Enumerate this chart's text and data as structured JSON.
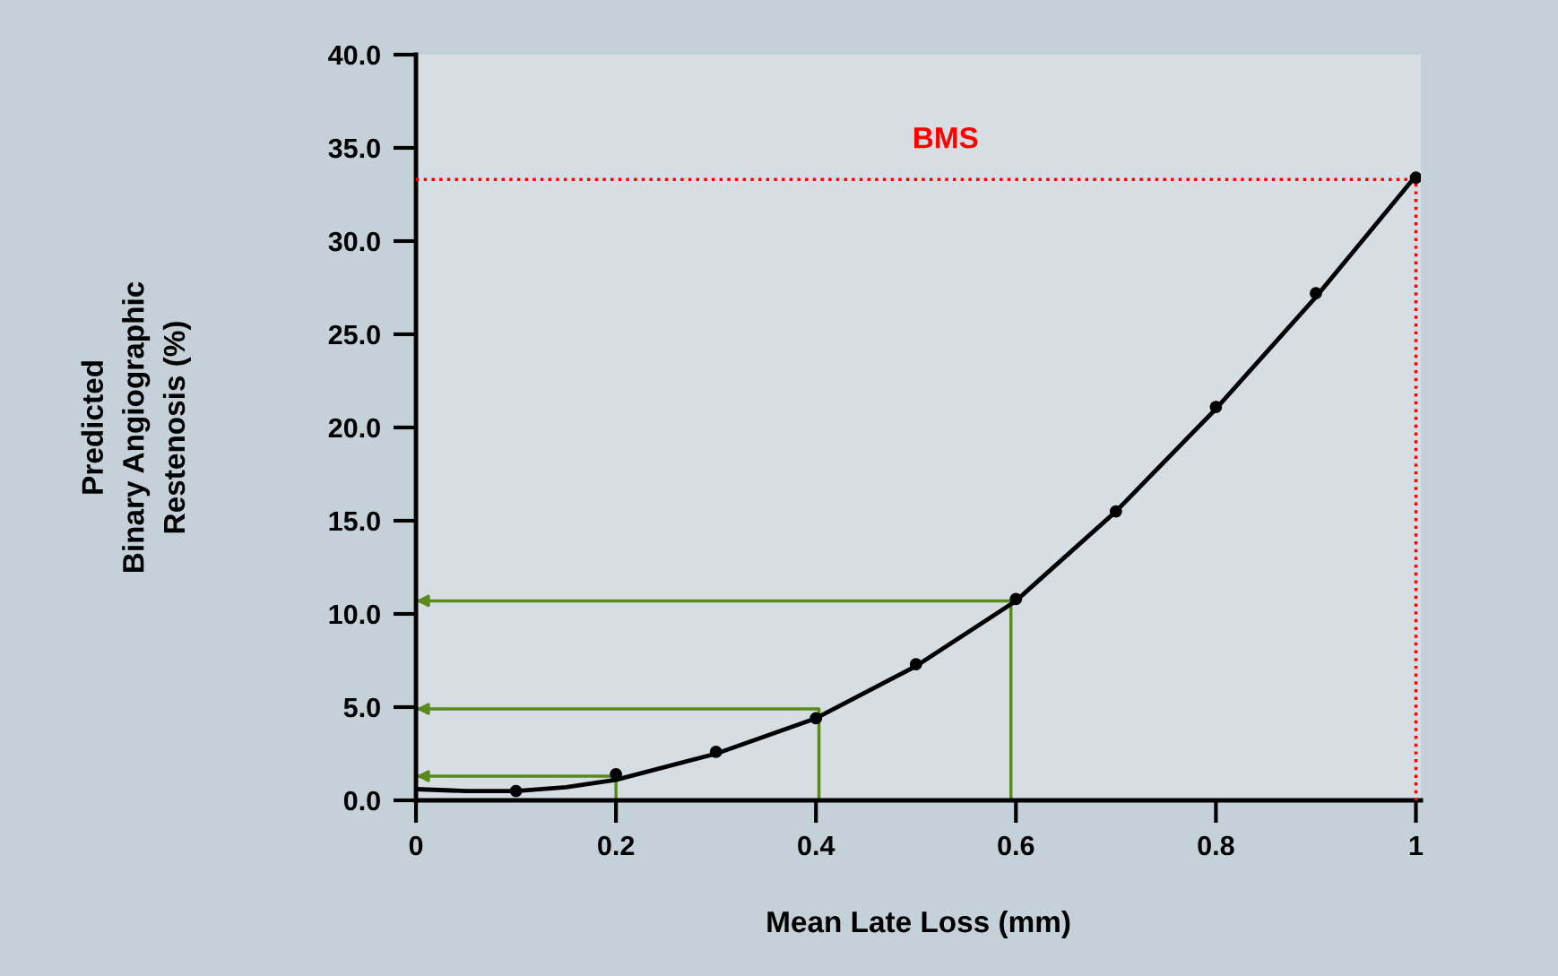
{
  "chart_data": {
    "type": "line",
    "xlabel": "Mean Late Loss (mm)",
    "ylabel": "Predicted\nBinary Angiographic\nRestenosis (%)",
    "xlim": [
      0,
      1.005
    ],
    "xticks": [
      0,
      0.2,
      0.4,
      0.6,
      0.8,
      1
    ],
    "ylim": [
      0,
      40
    ],
    "yticks": [
      {
        "value": 0,
        "label": "0.0"
      },
      {
        "value": 5,
        "label": "5.0"
      },
      {
        "value": 10,
        "label": "10.0"
      },
      {
        "value": 15,
        "label": "15.0"
      },
      {
        "value": 20,
        "label": "20.0"
      },
      {
        "value": 25,
        "label": "25.0"
      },
      {
        "value": 30,
        "label": "30.0"
      },
      {
        "value": 35,
        "label": "35.0"
      },
      {
        "value": 40,
        "label": "40.0"
      }
    ],
    "grid": false,
    "legend": false,
    "series": [
      {
        "color": "#000000",
        "line_style": "solid",
        "marker": "none",
        "x": [
          0,
          0.05,
          0.1,
          0.15,
          0.2,
          0.3,
          0.4,
          0.5,
          0.6,
          0.7,
          0.8,
          0.9,
          1.0
        ],
        "values": [
          0.6,
          0.5,
          0.5,
          0.7,
          1.1,
          2.5,
          4.4,
          7.2,
          10.7,
          15.5,
          21.0,
          27.0,
          33.5
        ]
      },
      {
        "type": "scatter",
        "color": "#000000",
        "marker": "circle",
        "x": [
          0.1,
          0.2,
          0.3,
          0.4,
          0.5,
          0.6,
          0.7,
          0.8,
          0.9,
          1.0
        ],
        "values": [
          0.5,
          1.4,
          2.6,
          4.4,
          7.3,
          10.8,
          15.5,
          21.1,
          27.2,
          33.4
        ]
      },
      {
        "color": "#ff0000",
        "line_style": "dotted",
        "marker": "none",
        "x": [
          0,
          1.0,
          1.0
        ],
        "values": [
          33.3,
          33.3,
          0
        ]
      },
      {
        "color": "#5a8a1e",
        "line_style": "solid",
        "x": [
          0.2,
          0.2,
          0
        ],
        "values": [
          0,
          1.3,
          1.3
        ]
      },
      {
        "color": "#5a8a1e",
        "line_style": "solid",
        "x": [
          0.403,
          0.403,
          0
        ],
        "values": [
          0,
          4.9,
          4.9
        ]
      },
      {
        "color": "#5a8a1e",
        "line_style": "solid",
        "x": [
          0.595,
          0.595,
          0
        ],
        "values": [
          0,
          10.7,
          10.7
        ]
      }
    ],
    "annotations": [
      "BMS"
    ]
  }
}
